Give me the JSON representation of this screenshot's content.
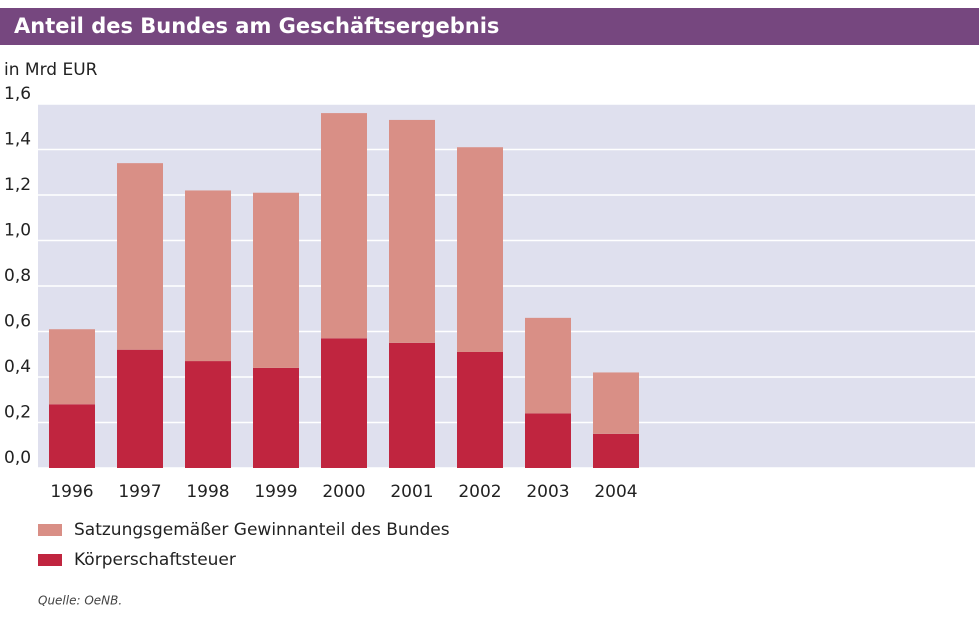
{
  "chart_data": {
    "type": "stacked_bar",
    "title": "Anteil des Bundes am Geschäftsergebnis",
    "y_axis_label": "in Mrd EUR",
    "categories": [
      "1996",
      "1997",
      "1998",
      "1999",
      "2000",
      "2001",
      "2002",
      "2003",
      "2004"
    ],
    "series": [
      {
        "name": "Satzungsgemäßer Gewinnanteil des Bundes",
        "color": "#d98f86",
        "values": [
          0.33,
          0.82,
          0.75,
          0.77,
          0.99,
          0.98,
          0.9,
          0.42,
          0.27
        ]
      },
      {
        "name": "Körperschaftsteuer",
        "color": "#c0253f",
        "values": [
          0.28,
          0.52,
          0.47,
          0.44,
          0.57,
          0.55,
          0.51,
          0.24,
          0.15
        ]
      }
    ],
    "ylim": [
      0,
      1.6
    ],
    "yticks": [
      {
        "value": 0,
        "label": "0,0"
      },
      {
        "value": 0.2,
        "label": "0,2"
      },
      {
        "value": 0.4,
        "label": "0,4"
      },
      {
        "value": 0.6,
        "label": "0,6"
      },
      {
        "value": 0.8,
        "label": "0,8"
      },
      {
        "value": 1.0,
        "label": "1,0"
      },
      {
        "value": 1.2,
        "label": "1,2"
      },
      {
        "value": 1.4,
        "label": "1,4"
      },
      {
        "value": 1.6,
        "label": "1,6"
      }
    ],
    "grid": true,
    "source": "Quelle: OeNB."
  }
}
